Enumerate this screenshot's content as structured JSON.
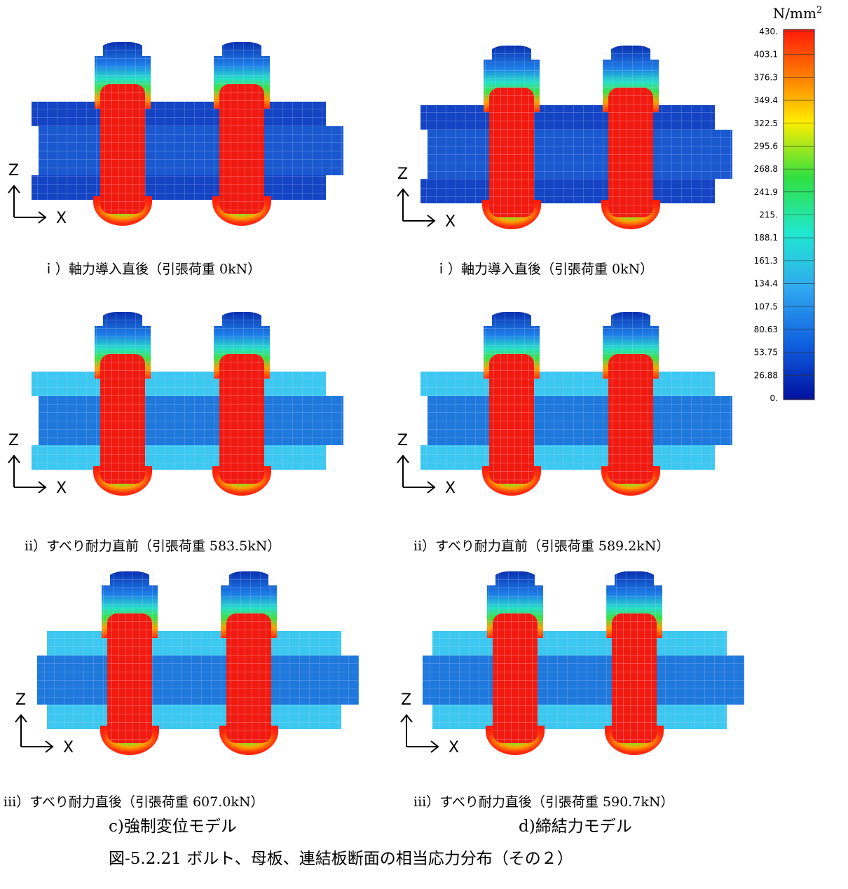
{
  "unit": {
    "base": "N/mm",
    "sup": "2"
  },
  "colorbar": {
    "labels": [
      "430.",
      "403.1",
      "376.3",
      "349.4",
      "322.5",
      "295.6",
      "268.8",
      "241.9",
      "215.",
      "188.1",
      "161.3",
      "134.4",
      "107.5",
      "80.63",
      "53.75",
      "26.88",
      "0."
    ]
  },
  "axis_labels": {
    "z": "Z",
    "x": "X"
  },
  "panels": [
    {
      "caption": "ｉ）軸力導入直後（引張荷重 0kN）"
    },
    {
      "caption": "ｉ）軸力導入直後（引張荷重 0kN）"
    },
    {
      "caption": "ⅱ）すべり耐力直前（引張荷重 583.5kN）"
    },
    {
      "caption": "ⅱ）すべり耐力直前（引張荷重 589.2kN）"
    },
    {
      "caption": "ⅲ）すべり耐力直後（引張荷重 607.0kN）"
    },
    {
      "caption": "ⅲ）すべり耐力直後（引張荷重 590.7kN）"
    }
  ],
  "column_captions": [
    "c)強制変位モデル",
    "d)締結力モデル"
  ],
  "figure_caption": "図-5.2.21 ボルト、母板、連結板断面の相当応力分布（その２）"
}
